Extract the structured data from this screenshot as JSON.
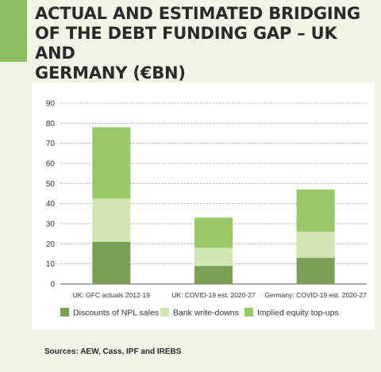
{
  "title_lines": [
    "ACTUAL AND ESTIMATED BRIDGING",
    "OF THE DEBT FUNDING GAP – UK AND",
    "GERMANY (€BN)"
  ],
  "sources": "Sources: AEW, Cass, IPF and IREBS",
  "colors": {
    "accent": "#8cc063",
    "npl": "#7a9f55",
    "writedowns": "#d2e6b3",
    "equity": "#98c867",
    "grid": "#9a9a9a",
    "axis_text": "#333333"
  },
  "chart_data": {
    "type": "bar",
    "stacked": true,
    "title": "",
    "xlabel": "",
    "ylabel": "",
    "ylim": [
      0,
      90
    ],
    "yticks": [
      0,
      10,
      20,
      30,
      40,
      50,
      60,
      70,
      80,
      90
    ],
    "grid": "horizontal dashed",
    "legend_position": "bottom",
    "categories": [
      "UK: GFC actuals 2012-19",
      "UK: COVID-19 est. 2020-27",
      "Germany: COVID-19 est. 2020-27"
    ],
    "series": [
      {
        "name": "Discounts of NPL sales",
        "color_key": "npl",
        "values": [
          21,
          9,
          13
        ]
      },
      {
        "name": "Bank write-downs",
        "color_key": "writedowns",
        "values": [
          21.5,
          9,
          13
        ]
      },
      {
        "name": "Implied equity top-ups",
        "color_key": "equity",
        "values": [
          35.5,
          15,
          21
        ]
      }
    ]
  }
}
